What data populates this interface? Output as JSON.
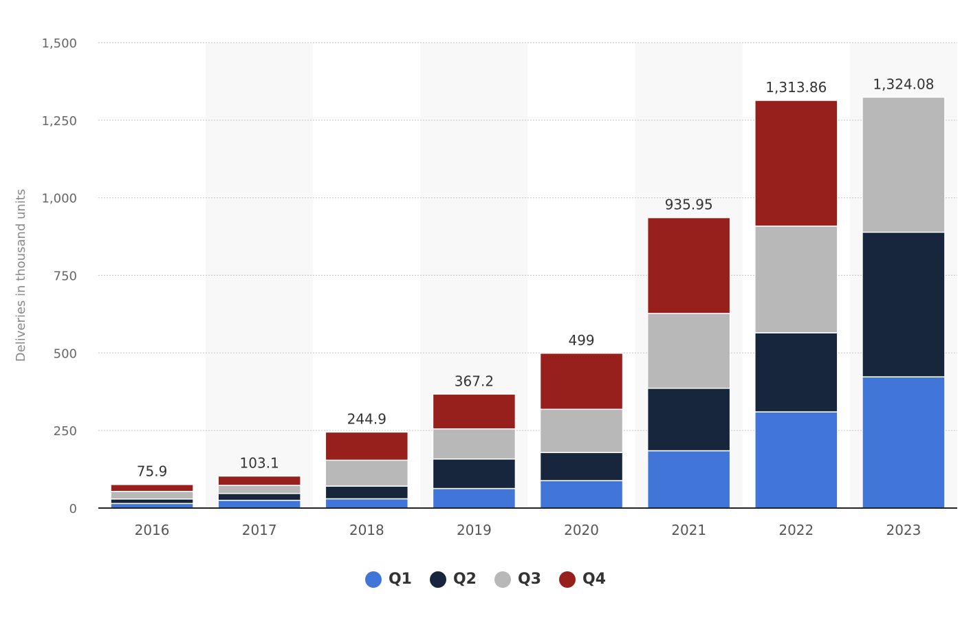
{
  "chart_data": {
    "type": "bar",
    "stacked": true,
    "categories": [
      "2016",
      "2017",
      "2018",
      "2019",
      "2020",
      "2021",
      "2022",
      "2023"
    ],
    "series": [
      {
        "name": "Q1",
        "color": "#4175d8",
        "values": [
          14.8,
          25.0,
          29.98,
          63.0,
          88.4,
          184.8,
          310.05,
          422.88
        ]
      },
      {
        "name": "Q2",
        "color": "#17263d",
        "values": [
          14.4,
          22.0,
          40.74,
          95.2,
          90.65,
          201.25,
          254.7,
          466.14
        ]
      },
      {
        "name": "Q3",
        "color": "#b8b8b8",
        "values": [
          24.5,
          26.15,
          83.5,
          97.0,
          139.3,
          241.3,
          343.83,
          435.06
        ]
      },
      {
        "name": "Q4",
        "color": "#97201c",
        "values": [
          22.2,
          29.95,
          90.7,
          112.0,
          180.65,
          308.6,
          405.28,
          0
        ]
      }
    ],
    "totals": [
      "75.9",
      "103.1",
      "244.9",
      "367.2",
      "499",
      "935.95",
      "1,313.86",
      "1,324.08"
    ],
    "total_values": [
      75.9,
      103.1,
      244.9,
      367.2,
      499,
      935.95,
      1313.86,
      1324.08
    ],
    "ylabel": "Deliveries in thousand units",
    "xlabel": "",
    "ylim": [
      0,
      1500
    ],
    "yticks": [
      0,
      250,
      500,
      750,
      1000,
      1250,
      1500
    ],
    "ytick_labels": [
      "0",
      "250",
      "500",
      "750",
      "1,000",
      "1,250",
      "1,500"
    ],
    "grid": true,
    "legend_position": "bottom-center"
  }
}
